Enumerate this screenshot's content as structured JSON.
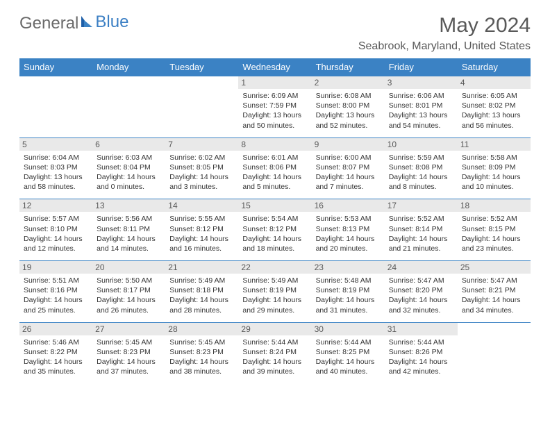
{
  "brand": {
    "general": "General",
    "blue": "Blue"
  },
  "title": "May 2024",
  "location": "Seabrook, Maryland, United States",
  "colors": {
    "header_bg": "#3b82c4",
    "header_fg": "#ffffff",
    "daynum_bg": "#e9e9e9",
    "text": "#333333",
    "title": "#595959",
    "border": "#3b82c4"
  },
  "fonts": {
    "title_size": 30,
    "location_size": 16,
    "header_size": 13,
    "daynum_size": 12,
    "body_size": 10.5
  },
  "columns": [
    "Sunday",
    "Monday",
    "Tuesday",
    "Wednesday",
    "Thursday",
    "Friday",
    "Saturday"
  ],
  "weeks": [
    [
      {
        "empty": true
      },
      {
        "empty": true
      },
      {
        "empty": true
      },
      {
        "day": "1",
        "sunrise": "6:09 AM",
        "sunset": "7:59 PM",
        "daylight": "13 hours and 50 minutes."
      },
      {
        "day": "2",
        "sunrise": "6:08 AM",
        "sunset": "8:00 PM",
        "daylight": "13 hours and 52 minutes."
      },
      {
        "day": "3",
        "sunrise": "6:06 AM",
        "sunset": "8:01 PM",
        "daylight": "13 hours and 54 minutes."
      },
      {
        "day": "4",
        "sunrise": "6:05 AM",
        "sunset": "8:02 PM",
        "daylight": "13 hours and 56 minutes."
      }
    ],
    [
      {
        "day": "5",
        "sunrise": "6:04 AM",
        "sunset": "8:03 PM",
        "daylight": "13 hours and 58 minutes."
      },
      {
        "day": "6",
        "sunrise": "6:03 AM",
        "sunset": "8:04 PM",
        "daylight": "14 hours and 0 minutes."
      },
      {
        "day": "7",
        "sunrise": "6:02 AM",
        "sunset": "8:05 PM",
        "daylight": "14 hours and 3 minutes."
      },
      {
        "day": "8",
        "sunrise": "6:01 AM",
        "sunset": "8:06 PM",
        "daylight": "14 hours and 5 minutes."
      },
      {
        "day": "9",
        "sunrise": "6:00 AM",
        "sunset": "8:07 PM",
        "daylight": "14 hours and 7 minutes."
      },
      {
        "day": "10",
        "sunrise": "5:59 AM",
        "sunset": "8:08 PM",
        "daylight": "14 hours and 8 minutes."
      },
      {
        "day": "11",
        "sunrise": "5:58 AM",
        "sunset": "8:09 PM",
        "daylight": "14 hours and 10 minutes."
      }
    ],
    [
      {
        "day": "12",
        "sunrise": "5:57 AM",
        "sunset": "8:10 PM",
        "daylight": "14 hours and 12 minutes."
      },
      {
        "day": "13",
        "sunrise": "5:56 AM",
        "sunset": "8:11 PM",
        "daylight": "14 hours and 14 minutes."
      },
      {
        "day": "14",
        "sunrise": "5:55 AM",
        "sunset": "8:12 PM",
        "daylight": "14 hours and 16 minutes."
      },
      {
        "day": "15",
        "sunrise": "5:54 AM",
        "sunset": "8:12 PM",
        "daylight": "14 hours and 18 minutes."
      },
      {
        "day": "16",
        "sunrise": "5:53 AM",
        "sunset": "8:13 PM",
        "daylight": "14 hours and 20 minutes."
      },
      {
        "day": "17",
        "sunrise": "5:52 AM",
        "sunset": "8:14 PM",
        "daylight": "14 hours and 21 minutes."
      },
      {
        "day": "18",
        "sunrise": "5:52 AM",
        "sunset": "8:15 PM",
        "daylight": "14 hours and 23 minutes."
      }
    ],
    [
      {
        "day": "19",
        "sunrise": "5:51 AM",
        "sunset": "8:16 PM",
        "daylight": "14 hours and 25 minutes."
      },
      {
        "day": "20",
        "sunrise": "5:50 AM",
        "sunset": "8:17 PM",
        "daylight": "14 hours and 26 minutes."
      },
      {
        "day": "21",
        "sunrise": "5:49 AM",
        "sunset": "8:18 PM",
        "daylight": "14 hours and 28 minutes."
      },
      {
        "day": "22",
        "sunrise": "5:49 AM",
        "sunset": "8:19 PM",
        "daylight": "14 hours and 29 minutes."
      },
      {
        "day": "23",
        "sunrise": "5:48 AM",
        "sunset": "8:19 PM",
        "daylight": "14 hours and 31 minutes."
      },
      {
        "day": "24",
        "sunrise": "5:47 AM",
        "sunset": "8:20 PM",
        "daylight": "14 hours and 32 minutes."
      },
      {
        "day": "25",
        "sunrise": "5:47 AM",
        "sunset": "8:21 PM",
        "daylight": "14 hours and 34 minutes."
      }
    ],
    [
      {
        "day": "26",
        "sunrise": "5:46 AM",
        "sunset": "8:22 PM",
        "daylight": "14 hours and 35 minutes."
      },
      {
        "day": "27",
        "sunrise": "5:45 AM",
        "sunset": "8:23 PM",
        "daylight": "14 hours and 37 minutes."
      },
      {
        "day": "28",
        "sunrise": "5:45 AM",
        "sunset": "8:23 PM",
        "daylight": "14 hours and 38 minutes."
      },
      {
        "day": "29",
        "sunrise": "5:44 AM",
        "sunset": "8:24 PM",
        "daylight": "14 hours and 39 minutes."
      },
      {
        "day": "30",
        "sunrise": "5:44 AM",
        "sunset": "8:25 PM",
        "daylight": "14 hours and 40 minutes."
      },
      {
        "day": "31",
        "sunrise": "5:44 AM",
        "sunset": "8:26 PM",
        "daylight": "14 hours and 42 minutes."
      },
      {
        "empty": true
      }
    ]
  ],
  "labels": {
    "sunrise": "Sunrise:",
    "sunset": "Sunset:",
    "daylight": "Daylight:"
  }
}
